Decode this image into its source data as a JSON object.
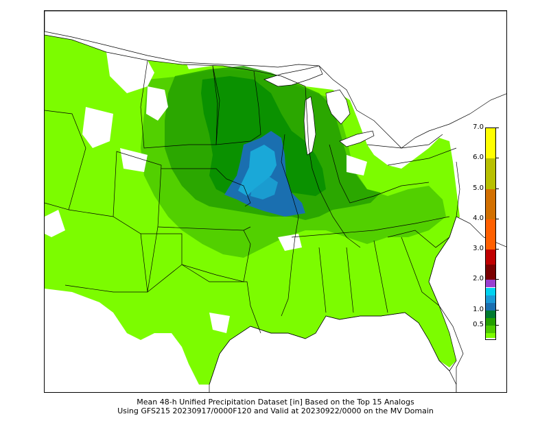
{
  "caption": {
    "line1": "Mean 48-h Unified Precipitation Dataset [in] Based on the Top 15 Analogs",
    "line2": "Using GFS215 20230917/0000F120 and Valid at 20230922/0000 on the MV Domain"
  },
  "colorbar": {
    "units": "in",
    "tick_labels": [
      "0.5",
      "1.0",
      "2.0",
      "3.0",
      "4.0",
      "5.0",
      "6.0",
      "7.0"
    ],
    "tick_values": [
      0.5,
      1.0,
      2.0,
      3.0,
      4.0,
      5.0,
      6.0,
      7.0
    ],
    "range": [
      0.0,
      7.0
    ],
    "colors": [
      {
        "from": 0.0,
        "to": 0.1,
        "color": "#ffffff"
      },
      {
        "from": 0.1,
        "to": 0.25,
        "color": "#7cfc00"
      },
      {
        "from": 0.25,
        "to": 0.5,
        "color": "#4ecb00"
      },
      {
        "from": 0.5,
        "to": 0.75,
        "color": "#24a000"
      },
      {
        "from": 0.75,
        "to": 1.0,
        "color": "#007a30"
      },
      {
        "from": 1.0,
        "to": 1.25,
        "color": "#1a6fb0"
      },
      {
        "from": 1.25,
        "to": 1.5,
        "color": "#1a9ad6"
      },
      {
        "from": 1.5,
        "to": 1.75,
        "color": "#00d2f0"
      },
      {
        "from": 1.75,
        "to": 2.0,
        "color": "#9a3fd0"
      },
      {
        "from": 2.0,
        "to": 2.5,
        "color": "#7a0000"
      },
      {
        "from": 2.5,
        "to": 3.0,
        "color": "#c00000"
      },
      {
        "from": 3.0,
        "to": 4.0,
        "color": "#ff6000"
      },
      {
        "from": 4.0,
        "to": 5.0,
        "color": "#d27000"
      },
      {
        "from": 5.0,
        "to": 6.0,
        "color": "#b8c000"
      },
      {
        "from": 6.0,
        "to": 7.0,
        "color": "#ffff00"
      }
    ]
  },
  "map": {
    "domain": "MV",
    "colors": {
      "light_green": "#7cfc00",
      "mid_green": "#4ecb00",
      "green": "#24a000",
      "dark_green": "#008a00",
      "blue": "#1a6fb0",
      "cyan": "#1aa8d8",
      "boundary": "#000000"
    }
  }
}
